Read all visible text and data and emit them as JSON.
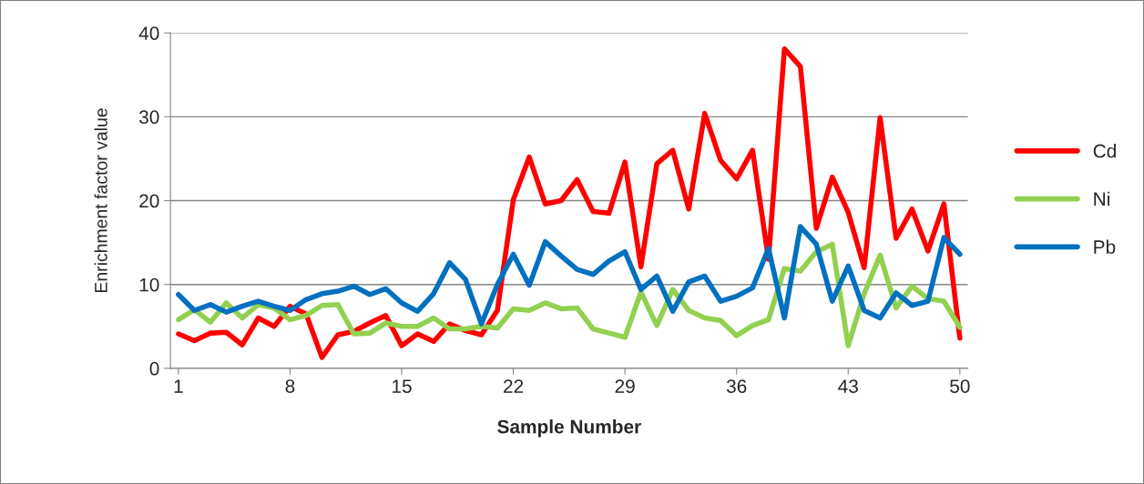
{
  "chart_data": {
    "type": "line",
    "xlabel": "Sample Number",
    "ylabel": "Enrichment factor value",
    "x": [
      1,
      2,
      3,
      4,
      5,
      6,
      7,
      8,
      9,
      10,
      11,
      12,
      13,
      14,
      15,
      16,
      17,
      18,
      19,
      20,
      21,
      22,
      23,
      24,
      25,
      26,
      27,
      28,
      29,
      30,
      31,
      32,
      33,
      34,
      35,
      36,
      37,
      38,
      39,
      40,
      41,
      42,
      43,
      44,
      45,
      46,
      47,
      48,
      49,
      50
    ],
    "series": [
      {
        "name": "Cd",
        "color": "#ff0000",
        "values": [
          4.1,
          3.3,
          4.2,
          4.3,
          2.8,
          6.0,
          5.0,
          7.4,
          6.5,
          1.3,
          4.0,
          4.4,
          5.4,
          6.3,
          2.7,
          4.1,
          3.2,
          5.3,
          4.5,
          4.0,
          6.9,
          20.1,
          25.2,
          19.6,
          20.0,
          22.5,
          18.7,
          18.5,
          24.6,
          12.1,
          24.4,
          26.0,
          19.0,
          30.4,
          24.8,
          22.6,
          26.0,
          13.0,
          38.1,
          36.0,
          16.7,
          22.8,
          18.6,
          12.0,
          29.9,
          15.5,
          19.0,
          14.0,
          19.6,
          3.6
        ]
      },
      {
        "name": "Ni",
        "color": "#92d050",
        "values": [
          5.8,
          7.0,
          5.5,
          7.8,
          6.0,
          7.6,
          7.2,
          5.8,
          6.3,
          7.5,
          7.6,
          4.1,
          4.2,
          5.4,
          5.0,
          5.0,
          6.0,
          4.7,
          4.7,
          5.0,
          4.8,
          7.1,
          6.9,
          7.8,
          7.1,
          7.2,
          4.7,
          4.2,
          3.7,
          9.1,
          5.1,
          9.4,
          6.9,
          6.0,
          5.7,
          3.9,
          5.1,
          5.8,
          11.9,
          11.6,
          13.9,
          14.8,
          2.7,
          8.9,
          13.5,
          7.2,
          9.8,
          8.3,
          8.0,
          4.9
        ]
      },
      {
        "name": "Pb",
        "color": "#0070c0",
        "values": [
          8.8,
          6.9,
          7.6,
          6.7,
          7.4,
          8.0,
          7.4,
          6.9,
          8.2,
          8.9,
          9.2,
          9.8,
          8.8,
          9.5,
          7.8,
          6.8,
          8.9,
          12.6,
          10.6,
          5.3,
          10.0,
          13.6,
          9.9,
          15.1,
          13.4,
          11.8,
          11.2,
          12.8,
          13.9,
          9.4,
          11.0,
          6.8,
          10.3,
          11.0,
          8.0,
          8.6,
          9.6,
          14.3,
          6.0,
          16.9,
          14.8,
          8.0,
          12.2,
          6.9,
          6.0,
          9.0,
          7.5,
          8.0,
          15.6,
          13.6
        ]
      }
    ],
    "xlim": [
      0.5,
      50.5
    ],
    "xticks": [
      1,
      8,
      15,
      22,
      29,
      36,
      43,
      50
    ],
    "ylim": [
      0,
      40
    ],
    "yticks": [
      0,
      10,
      20,
      30,
      40
    ],
    "grid": "y",
    "legend": "right",
    "marker": "none",
    "line_style": "solid"
  }
}
